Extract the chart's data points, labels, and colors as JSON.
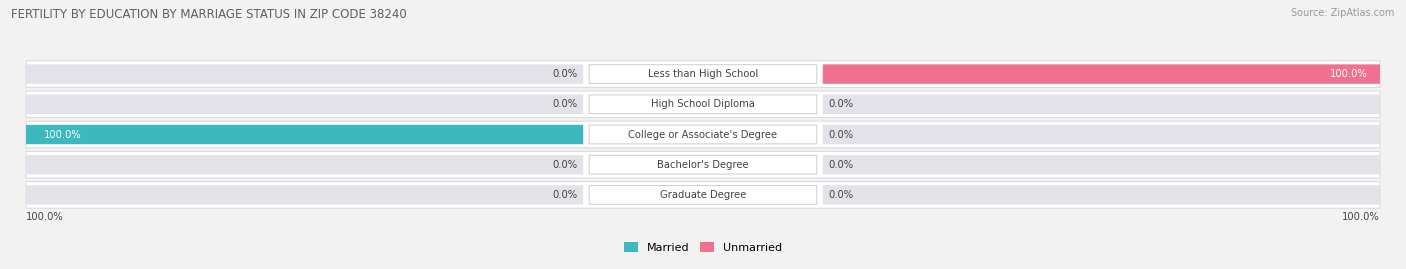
{
  "title": "FERTILITY BY EDUCATION BY MARRIAGE STATUS IN ZIP CODE 38240",
  "source": "Source: ZipAtlas.com",
  "categories": [
    "Less than High School",
    "High School Diploma",
    "College or Associate's Degree",
    "Bachelor's Degree",
    "Graduate Degree"
  ],
  "married": [
    0.0,
    0.0,
    100.0,
    0.0,
    0.0
  ],
  "unmarried": [
    100.0,
    0.0,
    0.0,
    0.0,
    0.0
  ],
  "married_color": "#3db8bc",
  "married_light_color": "#90cdd0",
  "unmarried_color": "#f07090",
  "unmarried_light_color": "#f4afc0",
  "bg_color": "#f2f2f2",
  "bar_bg_color": "#e2e2e8",
  "row_bg_color": "#ffffff",
  "title_color": "#606060",
  "text_color": "#444444",
  "source_color": "#999999",
  "legend_married": "Married",
  "legend_unmarried": "Unmarried",
  "x_axis_left": "100.0%",
  "x_axis_right": "100.0%"
}
